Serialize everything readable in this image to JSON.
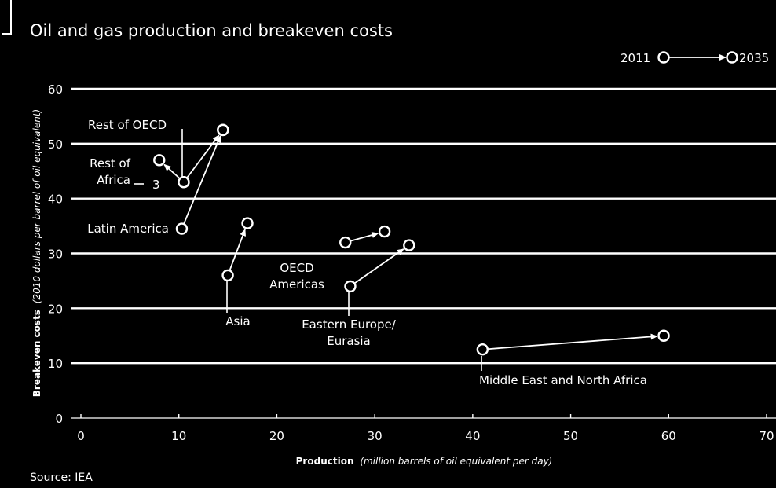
{
  "chart_data": {
    "type": "scatter",
    "title": "Oil and gas production and breakeven costs",
    "xlabel_main": "Production",
    "xlabel_unit": "(million barrels of oil equivalent per day)",
    "ylabel_main": "Breakeven costs",
    "ylabel_unit": "(2010 dollars per barrel of oil equivalent)",
    "xlim": [
      0,
      70
    ],
    "ylim": [
      0,
      60
    ],
    "x_ticks": [
      "0",
      "10",
      "20",
      "30",
      "40",
      "50",
      "60",
      "70"
    ],
    "y_ticks": [
      "0",
      "10",
      "20",
      "30",
      "40",
      "50",
      "60"
    ],
    "grid": "horizontal",
    "legend": {
      "from_label": "2011",
      "to_label": "2035",
      "placement": "top-right"
    },
    "series": [
      {
        "label_lines": [
          "Rest of OECD"
        ],
        "from": [
          10.5,
          43
        ],
        "to": [
          14.5,
          52.5
        ]
      },
      {
        "label_lines": [
          "Rest of",
          "Africa"
        ],
        "from": [
          10.5,
          43
        ],
        "to": [
          8,
          47
        ]
      },
      {
        "label_lines": [
          "Latin America"
        ],
        "from": [
          10.3,
          34.5
        ],
        "to": [
          14.5,
          52.5
        ]
      },
      {
        "label_lines": [
          "Asia"
        ],
        "from": [
          15,
          26
        ],
        "to": [
          17,
          35.5
        ]
      },
      {
        "label_lines": [
          "OECD",
          "Americas"
        ],
        "from": [
          27,
          32
        ],
        "to": [
          31,
          34
        ]
      },
      {
        "label_lines": [
          "Eastern Europe/",
          "Eurasia"
        ],
        "from": [
          27.5,
          24
        ],
        "to": [
          33.5,
          31.5
        ]
      },
      {
        "label_lines": [
          "Middle East and North Africa"
        ],
        "from": [
          41,
          12.5
        ],
        "to": [
          59.5,
          15
        ]
      }
    ],
    "rest_of_africa_extra_value": "3",
    "source": "Source: IEA"
  }
}
